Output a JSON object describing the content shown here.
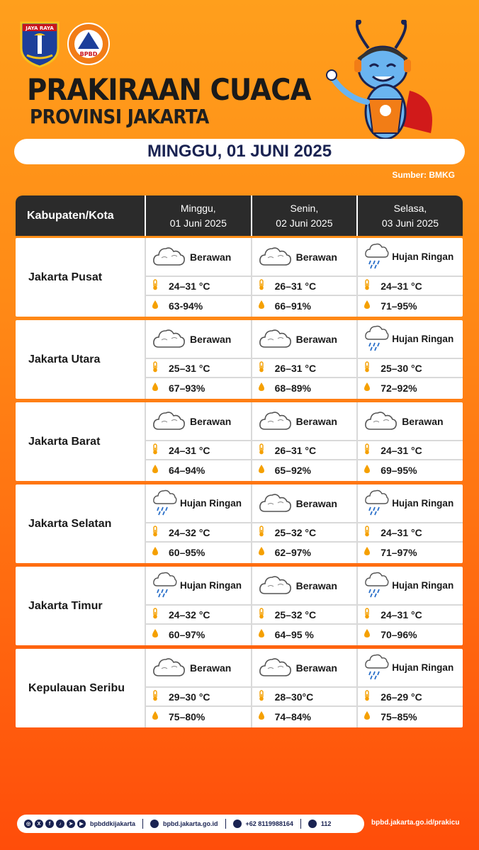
{
  "header": {
    "logo_text": "JAYA RAYA",
    "bpbd_logo_text": "BPBD",
    "title_line1": "PRAKIRAAN CUACA",
    "title_line2": "PROVINSI JAKARTA",
    "date": "MINGGU, 01 JUNI 2025",
    "source": "Sumber: BMKG"
  },
  "colors": {
    "accent": "#ff8a16",
    "header_bg": "#2b2b2b",
    "navy": "#1a2352",
    "drop": "#f5a000"
  },
  "table": {
    "columns": [
      "Kabupaten/Kota",
      "Minggu,\n01 Juni 2025",
      "Senin,\n02 Juni 2025",
      "Selasa,\n03 Juni 2025"
    ],
    "columns_lines": [
      [
        "Kabupaten/Kota"
      ],
      [
        "Minggu,",
        "01 Juni 2025"
      ],
      [
        "Senin,",
        "02 Juni 2025"
      ],
      [
        "Selasa,",
        "03 Juni 2025"
      ]
    ],
    "rows": [
      {
        "city": "Jakarta Pusat",
        "days": [
          {
            "icon": "cloud-icon",
            "weather": "Berawan",
            "temp": "24–31 °C",
            "humidity": "63-94%"
          },
          {
            "icon": "cloud-icon",
            "weather": "Berawan",
            "temp": "26–31 °C",
            "humidity": "66–91%"
          },
          {
            "icon": "rain-cloud-icon",
            "weather": "Hujan Ringan",
            "temp": "24–31 °C",
            "humidity": "71–95%"
          }
        ]
      },
      {
        "city": "Jakarta Utara",
        "days": [
          {
            "icon": "cloud-icon",
            "weather": "Berawan",
            "temp": "25–31 °C",
            "humidity": "67–93%"
          },
          {
            "icon": "cloud-icon",
            "weather": "Berawan",
            "temp": "26–31 °C",
            "humidity": "68–89%"
          },
          {
            "icon": "rain-cloud-icon",
            "weather": "Hujan Ringan",
            "temp": "25–30 °C",
            "humidity": "72–92%"
          }
        ]
      },
      {
        "city": "Jakarta Barat",
        "days": [
          {
            "icon": "cloud-icon",
            "weather": "Berawan",
            "temp": "24–31 °C",
            "humidity": "64–94%"
          },
          {
            "icon": "cloud-icon",
            "weather": "Berawan",
            "temp": "26–31 °C",
            "humidity": "65–92%"
          },
          {
            "icon": "cloud-icon",
            "weather": "Berawan",
            "temp": "24–31 °C",
            "humidity": "69–95%"
          }
        ]
      },
      {
        "city": "Jakarta Selatan",
        "days": [
          {
            "icon": "rain-cloud-icon",
            "weather": "Hujan Ringan",
            "temp": "24–32 °C",
            "humidity": "60–95%"
          },
          {
            "icon": "cloud-icon",
            "weather": "Berawan",
            "temp": "25–32 °C",
            "humidity": "62–97%"
          },
          {
            "icon": "rain-cloud-icon",
            "weather": "Hujan Ringan",
            "temp": "24–31 °C",
            "humidity": "71–97%"
          }
        ]
      },
      {
        "city": "Jakarta Timur",
        "days": [
          {
            "icon": "rain-cloud-icon",
            "weather": "Hujan Ringan",
            "temp": "24–32 °C",
            "humidity": "60–97%"
          },
          {
            "icon": "cloud-icon",
            "weather": "Berawan",
            "temp": "25–32 °C",
            "humidity": "64–95 %"
          },
          {
            "icon": "rain-cloud-icon",
            "weather": "Hujan Ringan",
            "temp": "24–31 °C",
            "humidity": "70–96%"
          }
        ]
      },
      {
        "city": "Kepulauan Seribu",
        "days": [
          {
            "icon": "cloud-icon",
            "weather": "Berawan",
            "temp": "29–30 °C",
            "humidity": "75–80%"
          },
          {
            "icon": "cloud-icon",
            "weather": "Berawan",
            "temp": "28–30°C",
            "humidity": "74–84%"
          },
          {
            "icon": "rain-cloud-icon",
            "weather": "Hujan Ringan",
            "temp": "26–29 °C",
            "humidity": "75–85%"
          }
        ]
      }
    ]
  },
  "footer": {
    "social_handle": "bpbddkijakarta",
    "website": "bpbd.jakarta.go.id",
    "phone": "+62 8119988164",
    "emergency": "112",
    "url": "bpbd.jakarta.go.id/prakicu"
  }
}
